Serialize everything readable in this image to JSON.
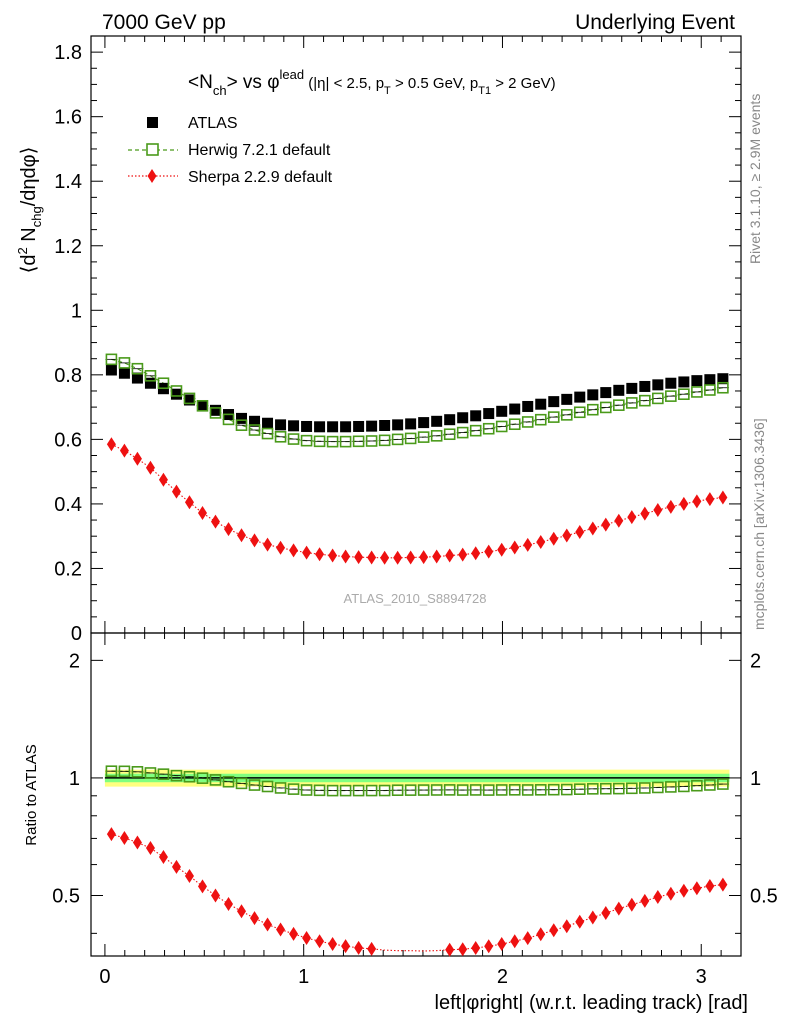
{
  "header": {
    "left": "7000 GeV pp",
    "right": "Underlying Event"
  },
  "side": {
    "rivet": "Rivet 3.1.10, ≥ 2.9M events",
    "mcplots": "mcplots.cern.ch [arXiv:1306.3436]"
  },
  "colors": {
    "atlas": "#000000",
    "herwig": "#4a9a1a",
    "sherpa": "#ee1111",
    "band_outer": "#ffff80",
    "band_inner": "#80ff80"
  },
  "chart_data": {
    "type": "scatter",
    "title_parts": {
      "n": "<N",
      "ch": "ch",
      "vs": "> vs φ",
      "lead": "lead",
      "cut1": " (|η| < 2.5, p",
      "T": "T",
      "cut2": " > 0.5 GeV, p",
      "T1": "T1",
      "cut3": " > 2 GeV)"
    },
    "ylabel_parts": {
      "a": "⟨d",
      "b": "2",
      "c": " N",
      "d": "chg",
      "e": "/dηdφ⟩"
    },
    "ratio_ylabel": "Ratio to ATLAS",
    "xlabel": "left|φright| (w.r.t. leading track) [rad]",
    "analysis_tag": "ATLAS_2010_S8894728",
    "x_range": [
      -0.07,
      3.2
    ],
    "main_y_range": [
      0,
      1.85
    ],
    "ratio_y_range": [
      0.35,
      2.35
    ],
    "x_ticks": [
      {
        "value": 0,
        "label": "0"
      },
      {
        "value": 1,
        "label": "1"
      },
      {
        "value": 2,
        "label": "2"
      },
      {
        "value": 3,
        "label": "3"
      }
    ],
    "main_y_ticks": [
      {
        "value": 0,
        "label": "0"
      },
      {
        "value": 0.2,
        "label": "0.2"
      },
      {
        "value": 0.4,
        "label": "0.4"
      },
      {
        "value": 0.6,
        "label": "0.6"
      },
      {
        "value": 0.8,
        "label": "0.8"
      },
      {
        "value": 1.0,
        "label": "1"
      },
      {
        "value": 1.2,
        "label": "1.2"
      },
      {
        "value": 1.4,
        "label": "1.4"
      },
      {
        "value": 1.6,
        "label": "1.6"
      },
      {
        "value": 1.8,
        "label": "1.8"
      }
    ],
    "ratio_y_ticks": [
      {
        "value": 0.5,
        "label": "0.5"
      },
      {
        "value": 1,
        "label": "1"
      },
      {
        "value": 2,
        "label": "2"
      }
    ],
    "ratio_band": {
      "inner": [
        0.975,
        1.025
      ],
      "outer": [
        0.95,
        1.05
      ]
    },
    "x": [
      0.0327,
      0.0982,
      0.1636,
      0.2291,
      0.2945,
      0.36,
      0.4254,
      0.4909,
      0.5563,
      0.6218,
      0.6872,
      0.7527,
      0.8181,
      0.8836,
      0.949,
      1.0145,
      1.0799,
      1.1454,
      1.2108,
      1.2763,
      1.3417,
      1.4072,
      1.4726,
      1.5381,
      1.6035,
      1.669,
      1.7344,
      1.7999,
      1.8653,
      1.9308,
      1.9962,
      2.0617,
      2.1271,
      2.1926,
      2.258,
      2.3235,
      2.3889,
      2.4544,
      2.5198,
      2.5853,
      2.6507,
      2.7162,
      2.7816,
      2.8471,
      2.9125,
      2.978,
      3.0434,
      3.1089
    ],
    "series": [
      {
        "name": "ATLAS",
        "marker": "square-filled",
        "values": [
          0.815,
          0.805,
          0.79,
          0.774,
          0.757,
          0.74,
          0.722,
          0.705,
          0.69,
          0.677,
          0.665,
          0.656,
          0.65,
          0.645,
          0.642,
          0.64,
          0.639,
          0.639,
          0.639,
          0.64,
          0.641,
          0.643,
          0.645,
          0.648,
          0.652,
          0.656,
          0.661,
          0.667,
          0.673,
          0.68,
          0.687,
          0.694,
          0.702,
          0.709,
          0.717,
          0.724,
          0.731,
          0.738,
          0.745,
          0.752,
          0.758,
          0.764,
          0.769,
          0.774,
          0.778,
          0.782,
          0.785,
          0.788
        ]
      },
      {
        "name": "Herwig 7.2.1 default",
        "marker": "square-open",
        "values": [
          0.848,
          0.837,
          0.819,
          0.797,
          0.774,
          0.75,
          0.727,
          0.704,
          0.682,
          0.662,
          0.644,
          0.629,
          0.618,
          0.608,
          0.601,
          0.596,
          0.594,
          0.593,
          0.593,
          0.594,
          0.595,
          0.597,
          0.6,
          0.603,
          0.607,
          0.611,
          0.616,
          0.621,
          0.627,
          0.633,
          0.64,
          0.647,
          0.654,
          0.661,
          0.669,
          0.676,
          0.684,
          0.692,
          0.699,
          0.706,
          0.713,
          0.72,
          0.727,
          0.734,
          0.74,
          0.747,
          0.753,
          0.76
        ]
      },
      {
        "name": "Sherpa 2.2.9 default",
        "marker": "diamond-filled",
        "values": [
          0.585,
          0.565,
          0.54,
          0.512,
          0.475,
          0.438,
          0.405,
          0.372,
          0.345,
          0.322,
          0.303,
          0.287,
          0.274,
          0.264,
          0.256,
          0.249,
          0.244,
          0.24,
          0.237,
          0.235,
          0.234,
          0.233,
          0.233,
          0.234,
          0.235,
          0.237,
          0.24,
          0.243,
          0.247,
          0.252,
          0.258,
          0.265,
          0.273,
          0.282,
          0.292,
          0.302,
          0.313,
          0.324,
          0.336,
          0.348,
          0.359,
          0.37,
          0.381,
          0.391,
          0.4,
          0.408,
          0.415,
          0.42
        ]
      }
    ]
  }
}
